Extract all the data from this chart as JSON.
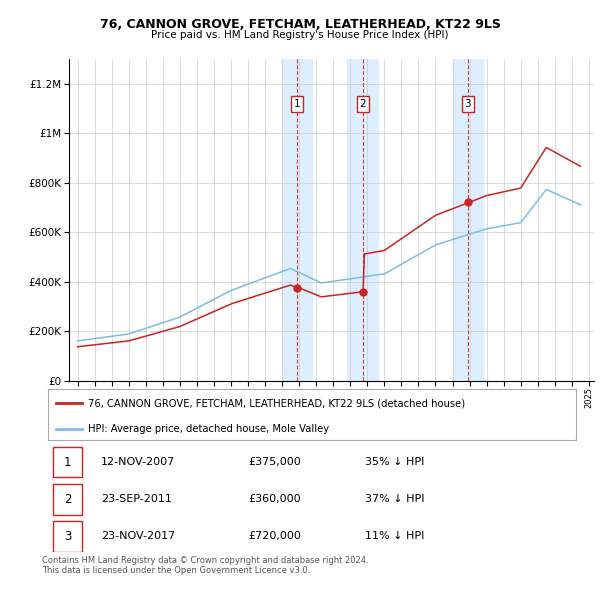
{
  "title": "76, CANNON GROVE, FETCHAM, LEATHERHEAD, KT22 9LS",
  "subtitle": "Price paid vs. HM Land Registry's House Price Index (HPI)",
  "legend_line1": "76, CANNON GROVE, FETCHAM, LEATHERHEAD, KT22 9LS (detached house)",
  "legend_line2": "HPI: Average price, detached house, Mole Valley",
  "footer1": "Contains HM Land Registry data © Crown copyright and database right 2024.",
  "footer2": "This data is licensed under the Open Government Licence v3.0.",
  "transactions": [
    {
      "num": 1,
      "date": "12-NOV-2007",
      "price": "£375,000",
      "pct": "35% ↓ HPI",
      "year": 2007.87,
      "price_val": 375000
    },
    {
      "num": 2,
      "date": "23-SEP-2011",
      "price": "£360,000",
      "pct": "37% ↓ HPI",
      "year": 2011.73,
      "price_val": 360000
    },
    {
      "num": 3,
      "date": "23-NOV-2017",
      "price": "£720,000",
      "pct": "11% ↓ HPI",
      "year": 2017.9,
      "price_val": 720000
    }
  ],
  "hpi_color": "#7bbce8",
  "price_color": "#cc2222",
  "vline_color": "#cc2222",
  "shade_color": "#ddeeff",
  "background_color": "#ffffff",
  "ylim": [
    0,
    1300000
  ],
  "xlim_start": 1994.5,
  "xlim_end": 2025.3,
  "yticks": [
    0,
    200000,
    400000,
    600000,
    800000,
    1000000,
    1200000
  ]
}
